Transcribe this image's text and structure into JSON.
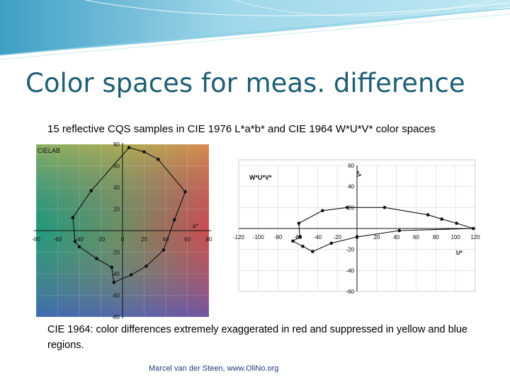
{
  "slide": {
    "title": "Color spaces for meas. difference",
    "subtitle": "15 reflective CQS samples in CIE 1976 L*a*b* and CIE 1964 W*U*V* color spaces",
    "caption": "CIE 1964: color differences extremely exaggerated in red and suppressed in yellow and blue regions.",
    "footer": "Marcel van der Steen, www.OliNo.org"
  },
  "chart_data": [
    {
      "type": "line",
      "title": "CIELAB",
      "xlabel": "a*",
      "ylabel": "",
      "xlim": [
        -80,
        80
      ],
      "ylim": [
        -80,
        80
      ],
      "xticks": [
        -80,
        -60,
        -40,
        -20,
        0,
        20,
        40,
        60,
        80
      ],
      "yticks": [
        -80,
        -60,
        -40,
        -20,
        0,
        20,
        40,
        60,
        80
      ],
      "grid": true,
      "background": "a*b* hue gradient",
      "series": [
        {
          "closed": true,
          "x": [
            6,
            20,
            33,
            58,
            48,
            38,
            22,
            8,
            -8,
            -10,
            -24,
            -40,
            -44,
            -46,
            -29
          ],
          "y": [
            77,
            73,
            66,
            36,
            10,
            -18,
            -33,
            -41,
            -48,
            -34,
            -26,
            -15,
            -10,
            12,
            37
          ]
        }
      ]
    },
    {
      "type": "line",
      "title": "W*U*V*",
      "xlabel": "U*",
      "ylabel": "V*",
      "xlim": [
        -120,
        120
      ],
      "ylim": [
        -60,
        60
      ],
      "xticks": [
        -120,
        -100,
        -80,
        -60,
        -40,
        -20,
        0,
        20,
        40,
        60,
        80,
        100,
        120
      ],
      "yticks": [
        -60,
        -40,
        -20,
        0,
        20,
        40,
        60
      ],
      "grid": true,
      "series": [
        {
          "closed": true,
          "x": [
            -10,
            28,
            72,
            86,
            101,
            118,
            43,
            0,
            -26,
            -45,
            -55,
            -65,
            -58,
            -59,
            -35
          ],
          "y": [
            20,
            20,
            13,
            9,
            5,
            0,
            -2,
            -8,
            -14,
            -22,
            -17,
            -12,
            -8,
            5,
            17
          ]
        }
      ]
    }
  ]
}
